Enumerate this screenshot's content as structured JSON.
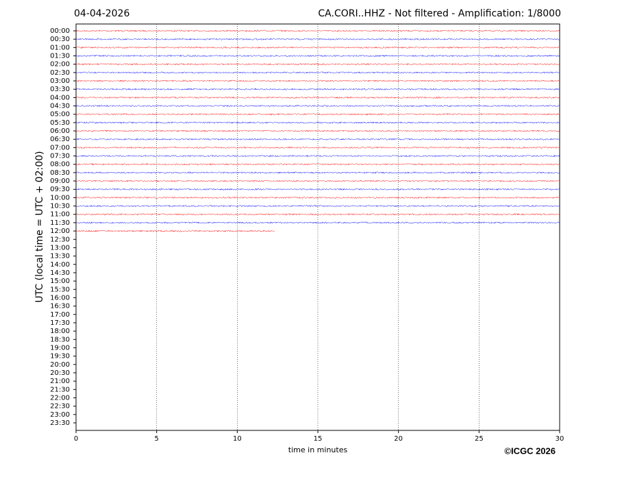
{
  "chart_data": {
    "type": "helicorder",
    "date": "04-04-2026",
    "title": "CA.CORI..HHZ - Not filtered - Amplification: 1/8000",
    "ylabel": "UTC (local time = UTC + 02:00)",
    "xlabel": "time in minutes",
    "copyright": "©ICGC 2026",
    "categories": [
      "00:00",
      "00:30",
      "01:00",
      "01:30",
      "02:00",
      "02:30",
      "03:00",
      "03:30",
      "04:00",
      "04:30",
      "05:00",
      "05:30",
      "06:00",
      "06:30",
      "07:00",
      "07:30",
      "08:00",
      "08:30",
      "09:00",
      "09:30",
      "10:00",
      "10:30",
      "11:00",
      "11:30",
      "12:00",
      "12:30",
      "13:00",
      "13:30",
      "14:00",
      "14:30",
      "15:00",
      "15:30",
      "16:00",
      "16:30",
      "17:00",
      "17:30",
      "18:00",
      "18:30",
      "19:00",
      "19:30",
      "20:00",
      "20:30",
      "21:00",
      "21:30",
      "22:00",
      "22:30",
      "23:00",
      "23:30"
    ],
    "values": [
      30,
      30,
      30,
      30,
      30,
      30,
      30,
      30,
      30,
      30,
      30,
      30,
      30,
      30,
      30,
      30,
      30,
      30,
      30,
      30,
      30,
      30,
      30,
      30,
      12.3,
      null,
      null,
      null,
      null,
      null,
      null,
      null,
      null,
      null,
      null,
      null,
      null,
      null,
      null,
      null,
      null,
      null,
      null,
      null,
      null,
      null,
      null,
      null
    ],
    "colors": [
      "#ff0000",
      "#0000ff"
    ],
    "xlim": [
      0,
      30
    ],
    "xticks": [
      0,
      5,
      10,
      15,
      20,
      25,
      30
    ],
    "grid": true
  }
}
